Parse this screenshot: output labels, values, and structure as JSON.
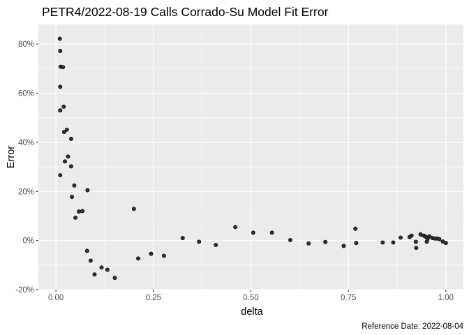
{
  "chart_data": {
    "type": "scatter",
    "title": "PETR4/2022-08-19 Calls Corrado-Su Model Fit Error",
    "xlabel": "delta",
    "ylabel": "Error",
    "caption": "Reference Date: 2022-08-04",
    "xlim": [
      -0.045,
      1.045
    ],
    "ylim": [
      -0.2,
      0.88
    ],
    "x_ticks": [
      0,
      0.25,
      0.5,
      0.75,
      1.0
    ],
    "x_tick_labels": [
      "0.00",
      "0.25",
      "0.50",
      "0.75",
      "1.00"
    ],
    "y_ticks": [
      -0.2,
      0.0,
      0.2,
      0.4,
      0.6,
      0.8
    ],
    "y_tick_labels": [
      "-20%",
      "0%",
      "20%",
      "40%",
      "60%",
      "80%"
    ],
    "grid": true,
    "background": "#ebebeb",
    "point_color": "#333333",
    "points": [
      {
        "x": 0.01,
        "y": 0.822
      },
      {
        "x": 0.011,
        "y": 0.772
      },
      {
        "x": 0.012,
        "y": 0.708
      },
      {
        "x": 0.018,
        "y": 0.706
      },
      {
        "x": 0.011,
        "y": 0.626
      },
      {
        "x": 0.02,
        "y": 0.545
      },
      {
        "x": 0.011,
        "y": 0.53
      },
      {
        "x": 0.028,
        "y": 0.451
      },
      {
        "x": 0.021,
        "y": 0.442
      },
      {
        "x": 0.039,
        "y": 0.414
      },
      {
        "x": 0.031,
        "y": 0.342
      },
      {
        "x": 0.023,
        "y": 0.322
      },
      {
        "x": 0.039,
        "y": 0.302
      },
      {
        "x": 0.011,
        "y": 0.266
      },
      {
        "x": 0.047,
        "y": 0.224
      },
      {
        "x": 0.081,
        "y": 0.205
      },
      {
        "x": 0.041,
        "y": 0.178
      },
      {
        "x": 0.068,
        "y": 0.12
      },
      {
        "x": 0.059,
        "y": 0.118
      },
      {
        "x": 0.05,
        "y": 0.093
      },
      {
        "x": 0.2,
        "y": 0.129
      },
      {
        "x": 0.08,
        "y": -0.042
      },
      {
        "x": 0.089,
        "y": -0.082
      },
      {
        "x": 0.117,
        "y": -0.11
      },
      {
        "x": 0.132,
        "y": -0.119
      },
      {
        "x": 0.099,
        "y": -0.138
      },
      {
        "x": 0.151,
        "y": -0.152
      },
      {
        "x": 0.211,
        "y": -0.073
      },
      {
        "x": 0.244,
        "y": -0.054
      },
      {
        "x": 0.277,
        "y": -0.062
      },
      {
        "x": 0.325,
        "y": 0.01
      },
      {
        "x": 0.367,
        "y": -0.005
      },
      {
        "x": 0.41,
        "y": -0.018
      },
      {
        "x": 0.46,
        "y": 0.055
      },
      {
        "x": 0.506,
        "y": 0.032
      },
      {
        "x": 0.554,
        "y": 0.032
      },
      {
        "x": 0.601,
        "y": 0.002
      },
      {
        "x": 0.648,
        "y": -0.012
      },
      {
        "x": 0.691,
        "y": -0.006
      },
      {
        "x": 0.738,
        "y": -0.022
      },
      {
        "x": 0.768,
        "y": 0.048
      },
      {
        "x": 0.77,
        "y": -0.01
      },
      {
        "x": 0.838,
        "y": -0.008
      },
      {
        "x": 0.865,
        "y": -0.008
      },
      {
        "x": 0.884,
        "y": 0.012
      },
      {
        "x": 0.907,
        "y": 0.014
      },
      {
        "x": 0.912,
        "y": 0.02
      },
      {
        "x": 0.923,
        "y": -0.005
      },
      {
        "x": 0.924,
        "y": -0.03
      },
      {
        "x": 0.935,
        "y": 0.025
      },
      {
        "x": 0.943,
        "y": 0.02
      },
      {
        "x": 0.948,
        "y": 0.016
      },
      {
        "x": 0.951,
        "y": -0.005
      },
      {
        "x": 0.953,
        "y": 0.006
      },
      {
        "x": 0.958,
        "y": 0.017
      },
      {
        "x": 0.966,
        "y": 0.01
      },
      {
        "x": 0.972,
        "y": 0.008
      },
      {
        "x": 0.978,
        "y": 0.008
      },
      {
        "x": 0.983,
        "y": 0.006
      },
      {
        "x": 0.992,
        "y": -0.004
      },
      {
        "x": 1.0,
        "y": -0.01
      }
    ]
  }
}
